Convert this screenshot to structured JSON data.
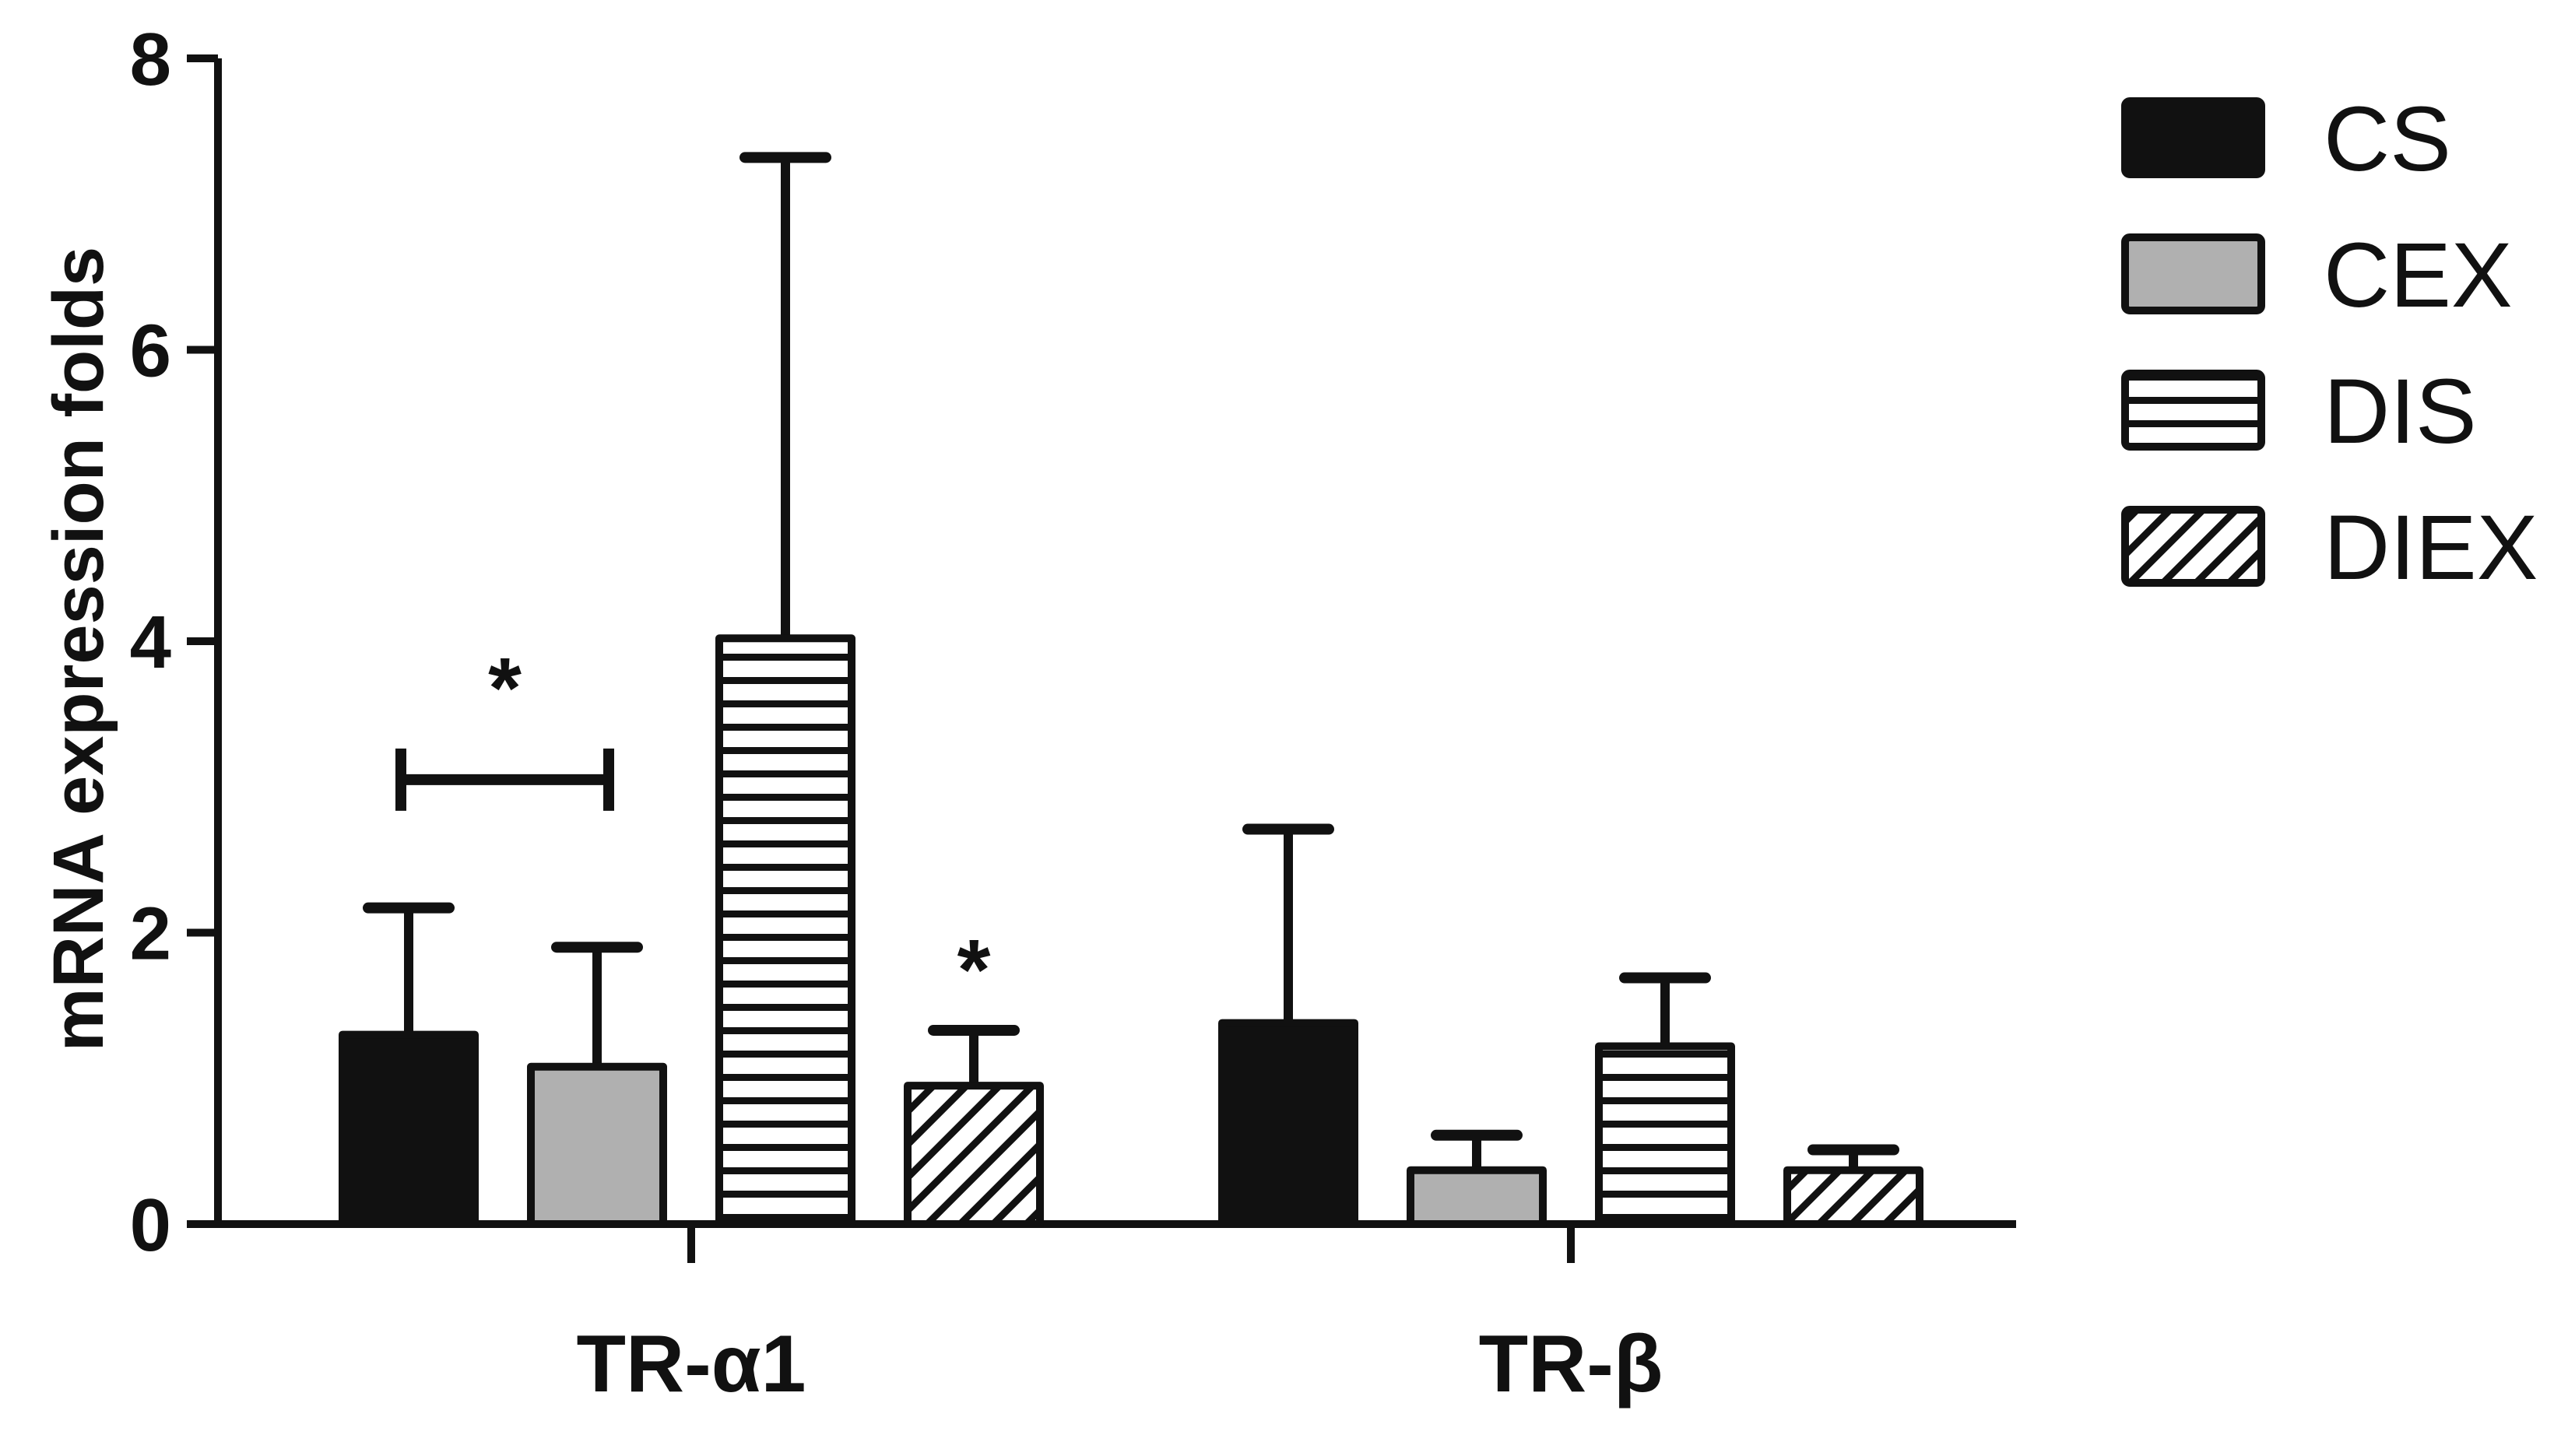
{
  "chart_data": {
    "type": "bar",
    "title": "",
    "ylabel": "mRNA expression folds",
    "xlabel": "",
    "ylim": [
      0,
      8
    ],
    "yticks": [
      0,
      2,
      4,
      6,
      8
    ],
    "grid": false,
    "legend_position": "top-right",
    "categories": [
      "TR-α1",
      "TR-β"
    ],
    "series": [
      {
        "name": "CS",
        "fill": "solid-black",
        "color": "#111111",
        "values": [
          1.3,
          1.38
        ],
        "errors": [
          0.87,
          1.33
        ]
      },
      {
        "name": "CEX",
        "fill": "solid-gray",
        "color": "#b0b0b0",
        "values": [
          1.08,
          0.37
        ],
        "errors": [
          0.82,
          0.24
        ]
      },
      {
        "name": "DIS",
        "fill": "horizontal-lines",
        "color": "#ffffff",
        "values": [
          4.02,
          1.22
        ],
        "errors": [
          3.3,
          0.47
        ]
      },
      {
        "name": "DIEX",
        "fill": "diagonal-hatch",
        "color": "#ffffff",
        "values": [
          0.95,
          0.37
        ],
        "errors": [
          0.38,
          0.14
        ]
      }
    ],
    "annotations": [
      {
        "text": "*",
        "category": "TR-α1",
        "between_series": [
          "CS",
          "CEX"
        ],
        "bracket": true,
        "bracket_y": 3.05
      },
      {
        "text": "*",
        "category": "TR-α1",
        "series": "DIEX"
      }
    ]
  }
}
